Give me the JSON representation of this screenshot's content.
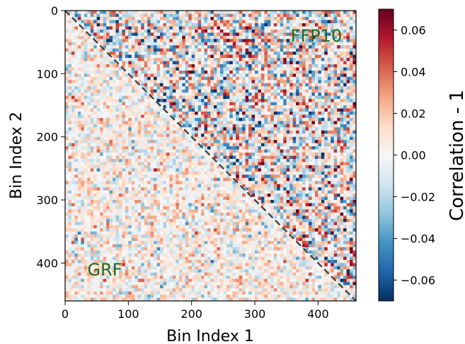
{
  "chart_data": {
    "type": "heatmap",
    "title": "",
    "xlabel": "Bin Index 1",
    "ylabel": "Bin Index 2",
    "xlim": [
      0,
      460
    ],
    "ylim": [
      460,
      0
    ],
    "xticks": [
      0,
      100,
      200,
      300,
      400
    ],
    "yticks": [
      0,
      100,
      200,
      300,
      400
    ],
    "grid": false,
    "colormap": "RdBu_r",
    "diagonal_line": {
      "style": "dashed",
      "color": "#444444",
      "from": [
        0,
        0
      ],
      "to": [
        460,
        460
      ]
    },
    "regions": [
      {
        "label": "FFP10",
        "triangle": "upper",
        "label_color": "#1f6b1f",
        "approx_std": 0.03
      },
      {
        "label": "GRF",
        "triangle": "lower",
        "label_color": "#1f6b1f",
        "approx_std": 0.015
      }
    ],
    "colorbar": {
      "label": "Correlation - 1",
      "vmin": -0.07,
      "vmax": 0.07,
      "ticks": [
        -0.06,
        -0.04,
        -0.02,
        0.0,
        0.02,
        0.04,
        0.06
      ],
      "tick_labels": [
        "−0.06",
        "−0.04",
        "−0.02",
        "0.00",
        "0.02",
        "0.04",
        "0.06"
      ]
    }
  }
}
